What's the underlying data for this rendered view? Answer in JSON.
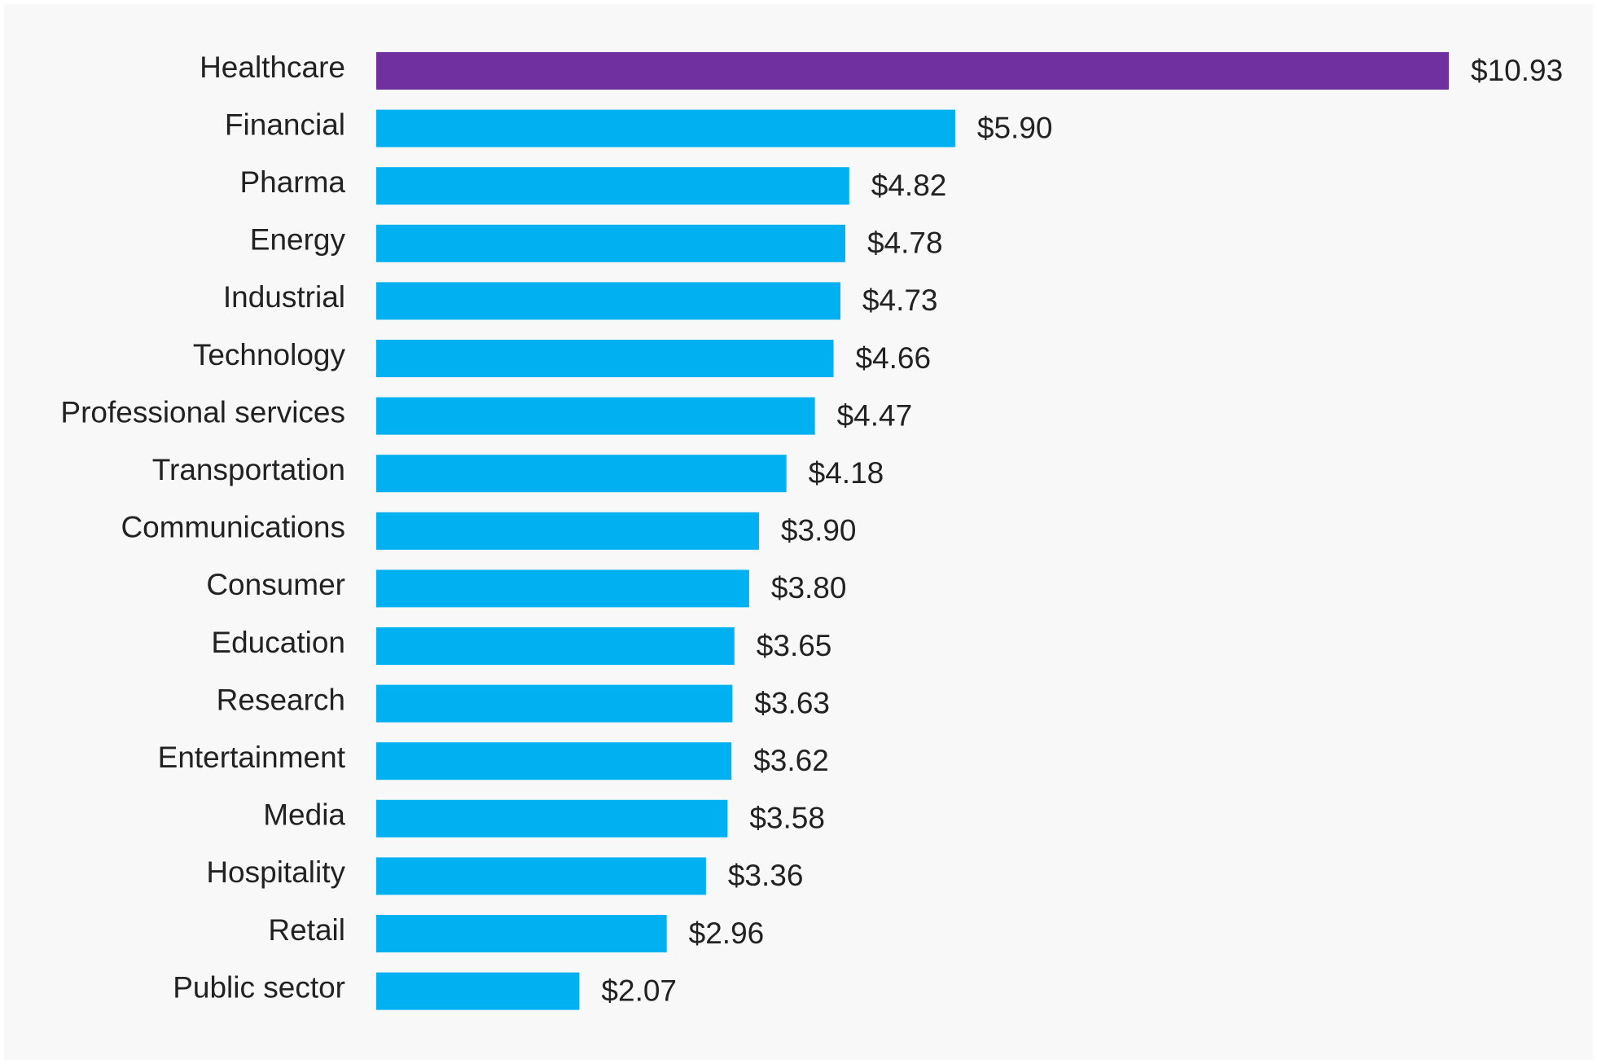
{
  "chart_data": {
    "type": "bar",
    "orientation": "horizontal",
    "title": "",
    "xlabel": "",
    "ylabel": "",
    "value_prefix": "$",
    "xlim": [
      0,
      10.93
    ],
    "grid": false,
    "legend": "none",
    "highlight_color": "#7030a0",
    "bar_color": "#00b0f0",
    "categories": [
      "Healthcare",
      "Financial",
      "Pharma",
      "Energy",
      "Industrial",
      "Technology",
      "Professional services",
      "Transportation",
      "Communications",
      "Consumer",
      "Education",
      "Research",
      "Entertainment",
      "Media",
      "Hospitality",
      "Retail",
      "Public sector"
    ],
    "values": [
      10.93,
      5.9,
      4.82,
      4.78,
      4.73,
      4.66,
      4.47,
      4.18,
      3.9,
      3.8,
      3.65,
      3.63,
      3.62,
      3.58,
      3.36,
      2.96,
      2.07
    ],
    "data_labels": [
      "$10.93",
      "$5.90",
      "$4.82",
      "$4.78",
      "$4.73",
      "$4.66",
      "$4.47",
      "$4.18",
      "$3.90",
      "$3.80",
      "$3.65",
      "$3.63",
      "$3.62",
      "$3.58",
      "$3.36",
      "$2.96",
      "$2.07"
    ],
    "highlighted": [
      "Healthcare"
    ]
  }
}
